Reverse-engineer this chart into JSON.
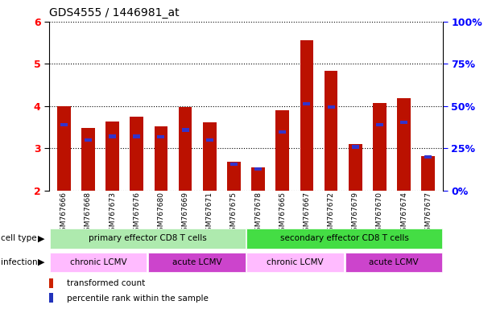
{
  "title": "GDS4555 / 1446981_at",
  "samples": [
    "GSM767666",
    "GSM767668",
    "GSM767673",
    "GSM767676",
    "GSM767680",
    "GSM767669",
    "GSM767671",
    "GSM767675",
    "GSM767678",
    "GSM767665",
    "GSM767667",
    "GSM767672",
    "GSM767679",
    "GSM767670",
    "GSM767674",
    "GSM767677"
  ],
  "red_values": [
    4.0,
    3.47,
    3.63,
    3.75,
    3.52,
    3.97,
    3.62,
    2.68,
    2.55,
    3.9,
    5.55,
    4.83,
    3.1,
    4.08,
    4.18,
    2.82
  ],
  "blue_values": [
    3.55,
    3.2,
    3.28,
    3.28,
    3.27,
    3.43,
    3.2,
    2.62,
    2.5,
    3.38,
    4.05,
    3.97,
    3.03,
    3.55,
    3.62,
    2.79
  ],
  "ylim": [
    2,
    6
  ],
  "yticks_left": [
    2,
    3,
    4,
    5,
    6
  ],
  "cell_type_groups": [
    {
      "label": "primary effector CD8 T cells",
      "start": 0,
      "end": 8,
      "color": "#aeeaae"
    },
    {
      "label": "secondary effector CD8 T cells",
      "start": 8,
      "end": 16,
      "color": "#44dd44"
    }
  ],
  "infection_groups": [
    {
      "label": "chronic LCMV",
      "start": 0,
      "end": 4,
      "color": "#ffbbff"
    },
    {
      "label": "acute LCMV",
      "start": 4,
      "end": 8,
      "color": "#cc44cc"
    },
    {
      "label": "chronic LCMV",
      "start": 8,
      "end": 12,
      "color": "#ffbbff"
    },
    {
      "label": "acute LCMV",
      "start": 12,
      "end": 16,
      "color": "#cc44cc"
    }
  ],
  "red_color": "#bb1100",
  "blue_color": "#3333cc",
  "legend_red_color": "#cc2200",
  "legend_blue_color": "#2233bb"
}
